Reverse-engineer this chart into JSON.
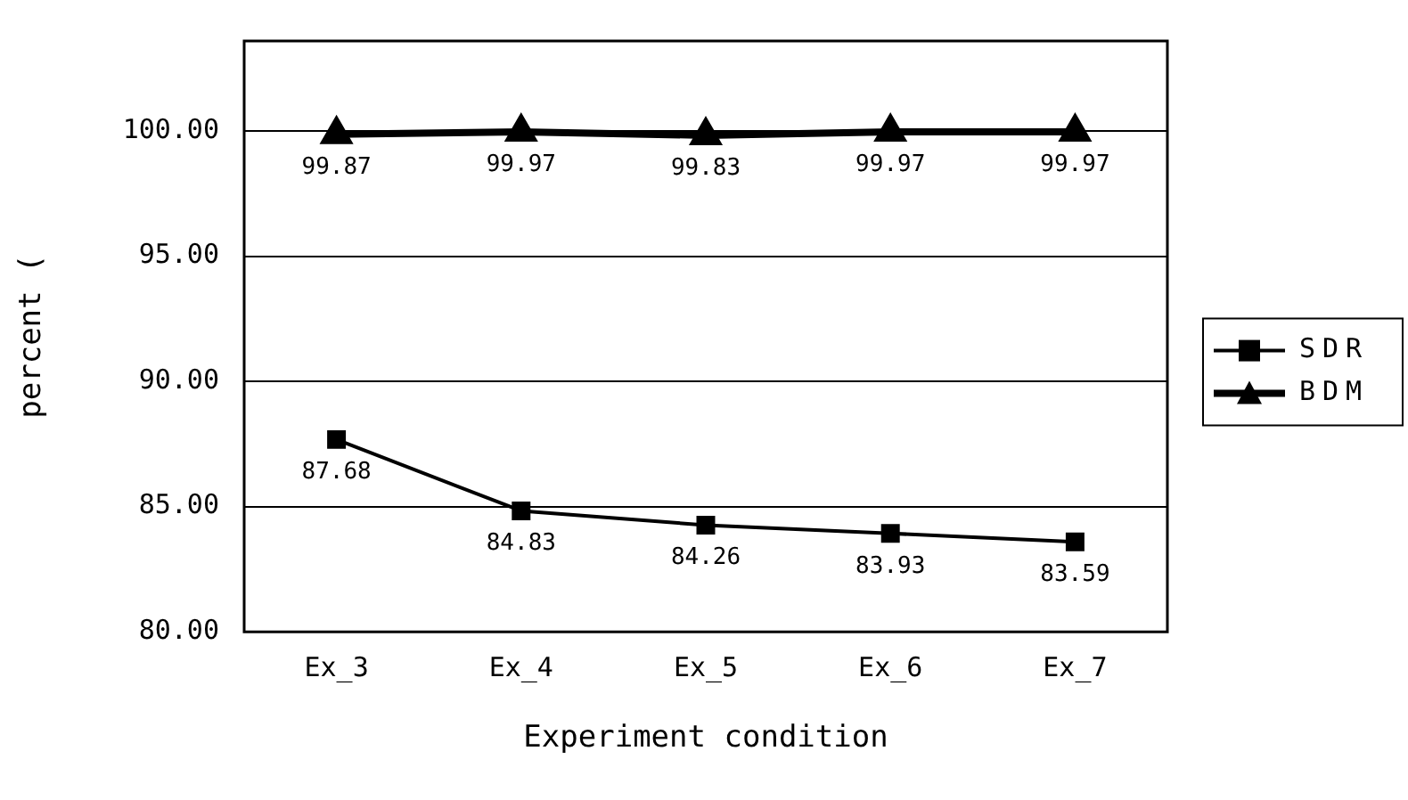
{
  "chart_data": {
    "type": "line",
    "xlabel": "Experiment condition",
    "ylabel": "percent (",
    "categories": [
      "Ex_3",
      "Ex_4",
      "Ex_5",
      "Ex_6",
      "Ex_7"
    ],
    "series": [
      {
        "name": "SDR",
        "color": "#000000",
        "marker": "square",
        "values": [
          87.68,
          84.83,
          84.26,
          83.93,
          83.59
        ]
      },
      {
        "name": "BDM",
        "color": "#000000",
        "marker": "triangle",
        "values": [
          99.87,
          99.97,
          99.83,
          99.97,
          99.97
        ]
      }
    ],
    "ylim": [
      80,
      103.6
    ],
    "yticks": [
      {
        "value": 80,
        "label": "80.00"
      },
      {
        "value": 85,
        "label": "85.00"
      },
      {
        "value": 90,
        "label": "90.00"
      },
      {
        "value": 95,
        "label": "95.00"
      },
      {
        "value": 100,
        "label": "100.00"
      }
    ],
    "grid": "y",
    "legend": "right",
    "data_labels": true,
    "line_style": "solid"
  }
}
